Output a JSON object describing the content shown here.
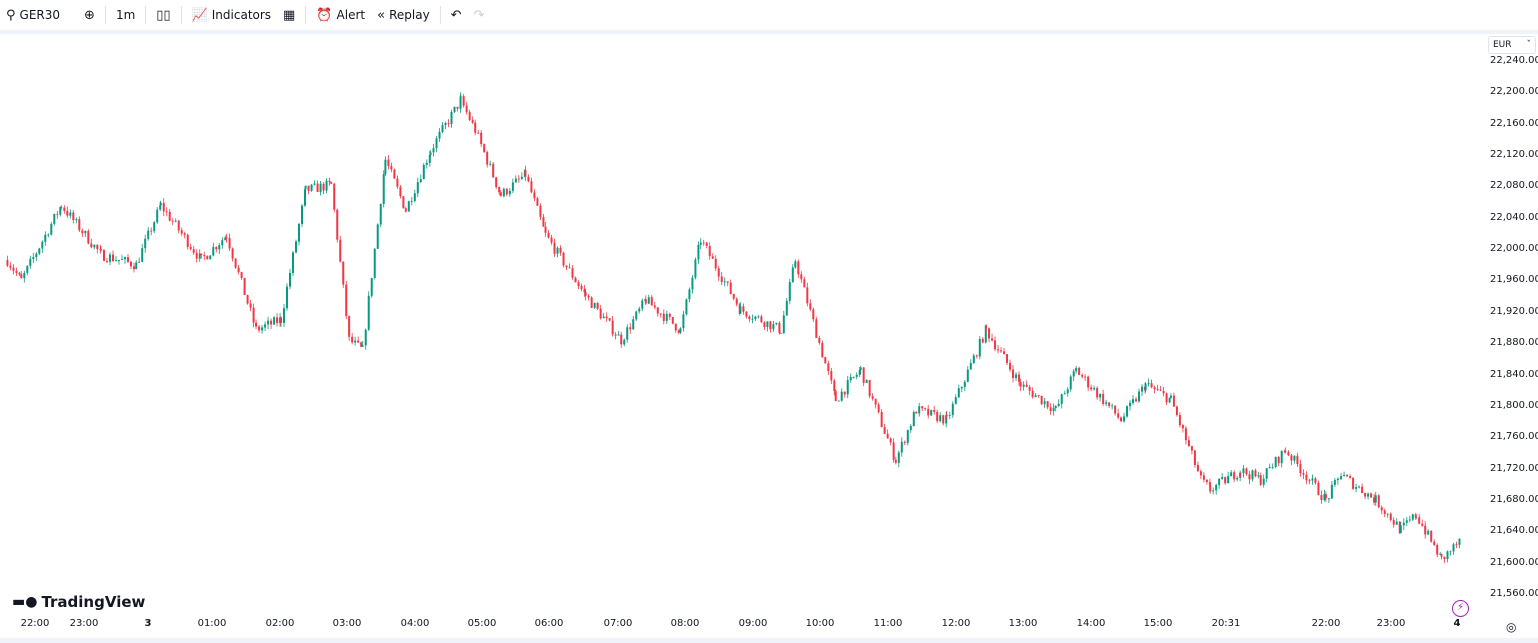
{
  "toolbar": {
    "symbol": "GER30",
    "interval": "1m",
    "indicators": "Indicators",
    "alert": "Alert",
    "replay": "Replay"
  },
  "icons": [
    "search-icon",
    "plus-circle-icon",
    "candles-icon",
    "indicators-icon",
    "layout-grid-icon",
    "alarm-icon",
    "replay-icon",
    "undo-icon",
    "redo-icon",
    "lightning-icon",
    "settings-icon"
  ],
  "currency": "EUR",
  "brand": "TradingView",
  "colors": {
    "up": "#089981",
    "down": "#f23645"
  },
  "chart_data": {
    "type": "candlestick",
    "interval": "1m",
    "ylim": [
      21540,
      22260
    ],
    "y_ticks": [
      "22,240.00",
      "22,200.00",
      "22,160.00",
      "22,120.00",
      "22,080.00",
      "22,040.00",
      "22,000.00",
      "21,960.00",
      "21,920.00",
      "21,880.00",
      "21,840.00",
      "21,800.00",
      "21,760.00",
      "21,720.00",
      "21,680.00",
      "21,640.00",
      "21,600.00",
      "21,560.00"
    ],
    "x_ticks": [
      "22:00",
      "23:00",
      "3",
      "01:00",
      "02:00",
      "03:00",
      "04:00",
      "05:00",
      "06:00",
      "07:00",
      "08:00",
      "09:00",
      "10:00",
      "11:00",
      "12:00",
      "13:00",
      "14:00",
      "15:00",
      "20:31",
      "22:00",
      "23:00",
      "4"
    ],
    "price_path": [
      [
        "21:25",
        21986
      ],
      [
        "21:42",
        21960
      ],
      [
        "22:31",
        22056
      ],
      [
        "23:15",
        21993
      ],
      [
        "23:48",
        21980
      ],
      [
        "00:11",
        22056
      ],
      [
        "00:49",
        21986
      ],
      [
        "01:12",
        22018
      ],
      [
        "01:38",
        21897
      ],
      [
        "02:00",
        21910
      ],
      [
        "02:22",
        22075
      ],
      [
        "02:45",
        22082
      ],
      [
        "03:01",
        21884
      ],
      [
        "03:13",
        21871
      ],
      [
        "03:33",
        22114
      ],
      [
        "03:51",
        22050
      ],
      [
        "04:13",
        22126
      ],
      [
        "04:40",
        22190
      ],
      [
        "04:53",
        22152
      ],
      [
        "05:16",
        22069
      ],
      [
        "05:38",
        22095
      ],
      [
        "05:56",
        22018
      ],
      [
        "06:31",
        21941
      ],
      [
        "07:02",
        21884
      ],
      [
        "07:24",
        21935
      ],
      [
        "07:55",
        21897
      ],
      [
        "08:13",
        22012
      ],
      [
        "08:48",
        21923
      ],
      [
        "09:24",
        21897
      ],
      [
        "09:37",
        21986
      ],
      [
        "10:13",
        21808
      ],
      [
        "10:35",
        21846
      ],
      [
        "11:06",
        21731
      ],
      [
        "11:24",
        21795
      ],
      [
        "11:51",
        21782
      ],
      [
        "12:26",
        21897
      ],
      [
        "12:57",
        21827
      ],
      [
        "13:28",
        21795
      ],
      [
        "13:46",
        21846
      ],
      [
        "14:26",
        21782
      ],
      [
        "14:48",
        21827
      ],
      [
        "15:58",
        21808
      ],
      [
        "18:24",
        21706
      ],
      [
        "19:09",
        21693
      ],
      [
        "20:43",
        21718
      ],
      [
        "21:01",
        21706
      ],
      [
        "21:23",
        21744
      ],
      [
        "21:59",
        21680
      ],
      [
        "22:13",
        21712
      ],
      [
        "22:45",
        21680
      ],
      [
        "23:08",
        21642
      ],
      [
        "23:22",
        21661
      ],
      [
        "23:45",
        21604
      ],
      [
        "00:03",
        21629
      ]
    ]
  }
}
